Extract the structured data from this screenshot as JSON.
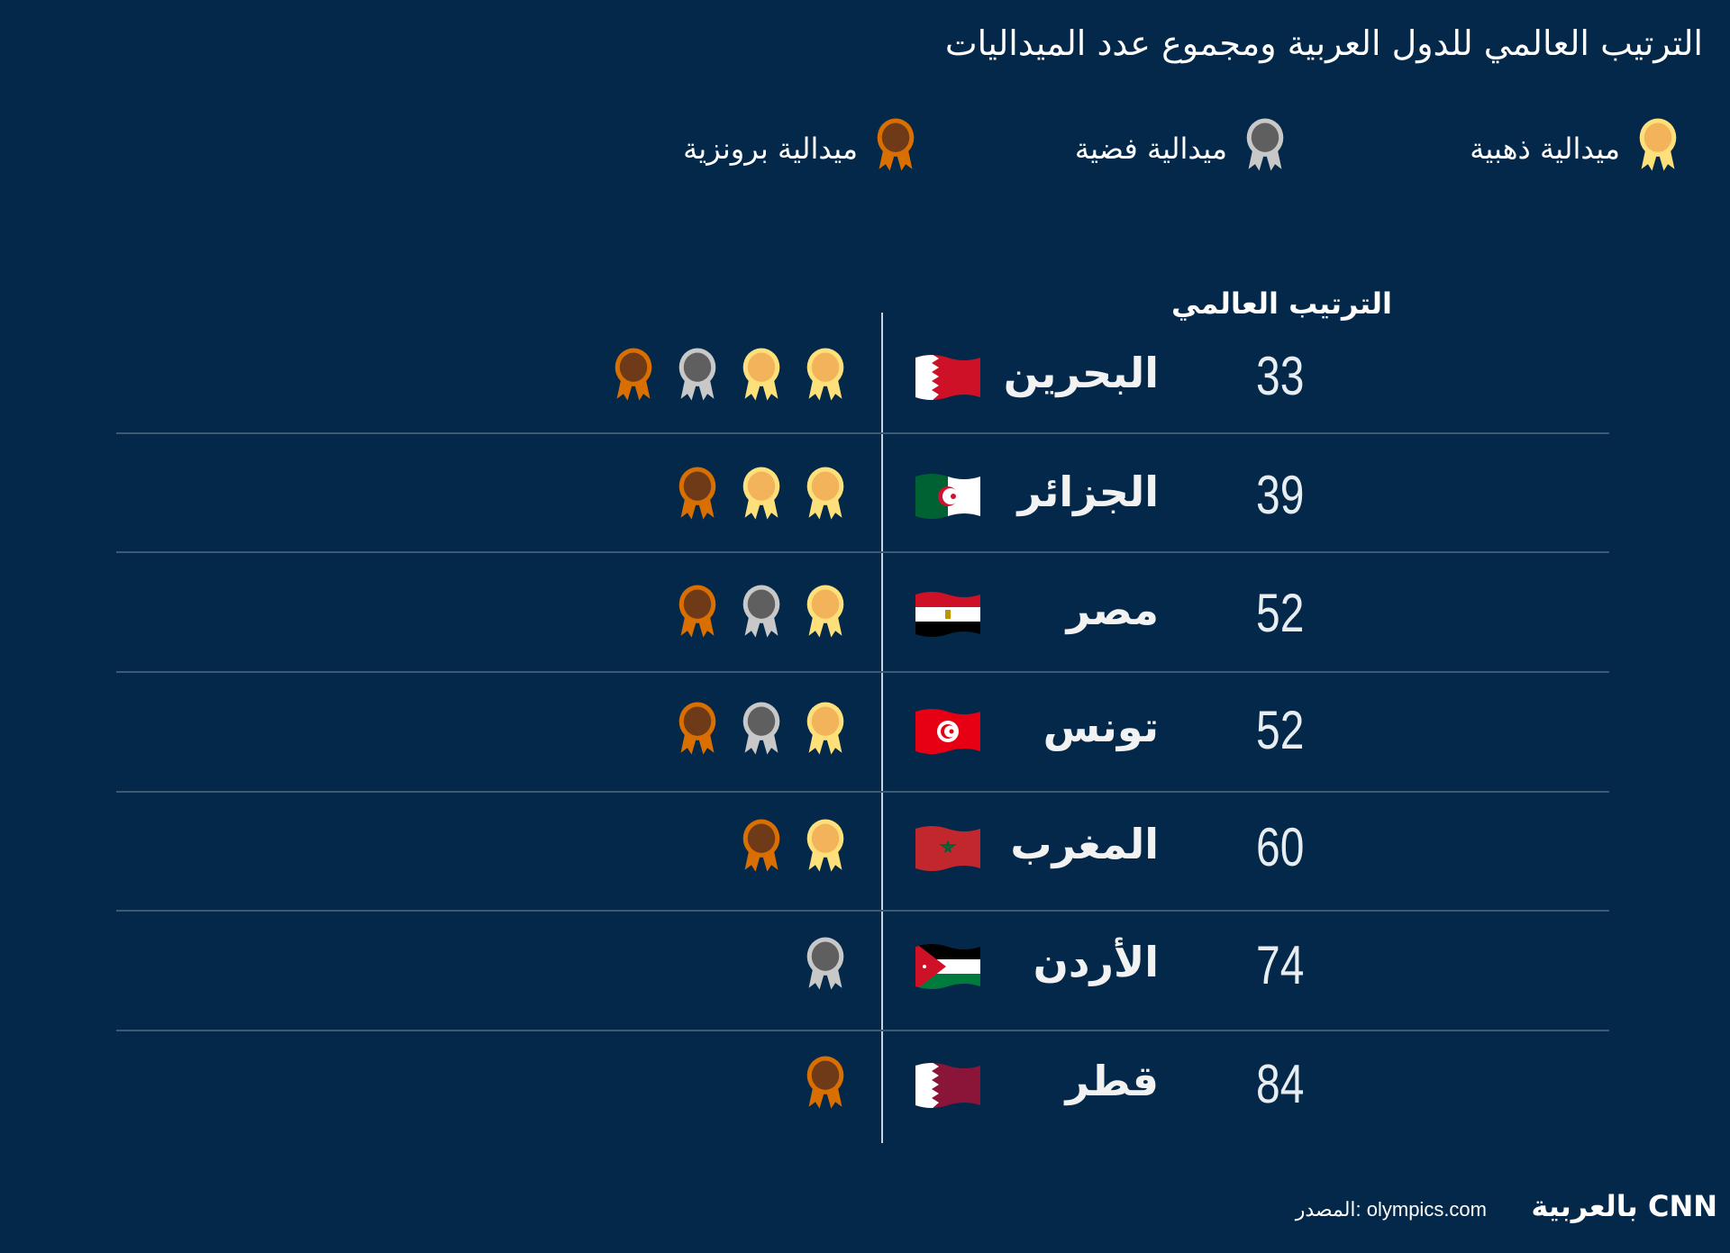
{
  "title": "الترتيب العالمي للدول العربية ومجموع عدد الميداليات",
  "legend": [
    {
      "type": "gold",
      "label": "ميدالية ذهبية"
    },
    {
      "type": "silver",
      "label": "ميدالية فضية"
    },
    {
      "type": "bronze",
      "label": "ميدالية برونزية"
    }
  ],
  "column_header": "الترتيب العالمي",
  "colors": {
    "background": "#03284a",
    "gold": {
      "ring": "#fde07a",
      "inner": "#f2b35a"
    },
    "silver": {
      "ring": "#c8c8c8",
      "inner": "#5f5f5f"
    },
    "bronze": {
      "ring": "#d96f00",
      "inner": "#6e3a17"
    }
  },
  "rows": [
    {
      "rank": "33",
      "country": "البحرين",
      "flag": "bahrain-flag",
      "gold": 2,
      "silver": 1,
      "bronze": 1
    },
    {
      "rank": "39",
      "country": "الجزائر",
      "flag": "algeria-flag",
      "gold": 2,
      "silver": 0,
      "bronze": 1
    },
    {
      "rank": "52",
      "country": "مصر",
      "flag": "egypt-flag",
      "gold": 1,
      "silver": 1,
      "bronze": 1
    },
    {
      "rank": "52",
      "country": "تونس",
      "flag": "tunisia-flag",
      "gold": 1,
      "silver": 1,
      "bronze": 1
    },
    {
      "rank": "60",
      "country": "المغرب",
      "flag": "morocco-flag",
      "gold": 1,
      "silver": 0,
      "bronze": 1
    },
    {
      "rank": "74",
      "country": "الأردن",
      "flag": "jordan-flag",
      "gold": 0,
      "silver": 1,
      "bronze": 0
    },
    {
      "rank": "84",
      "country": "قطر",
      "flag": "qatar-flag",
      "gold": 0,
      "silver": 0,
      "bronze": 1
    }
  ],
  "footer": {
    "source": "المصدر: olympics.com",
    "logo": "CNN بالعربية"
  }
}
